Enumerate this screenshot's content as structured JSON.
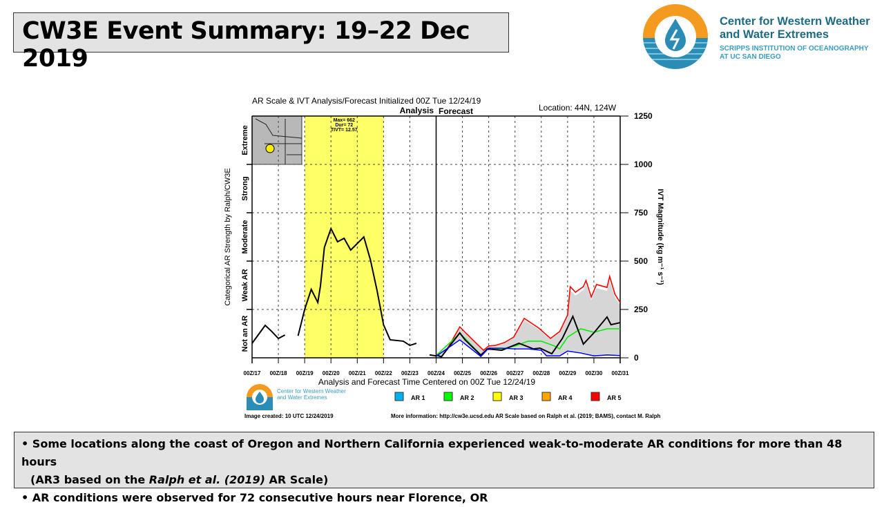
{
  "slide_title": "CW3E Event Summary: 19–22 Dec 2019",
  "logo": {
    "name_line1": "Center for Western Weather",
    "name_line2": "and Water Extremes",
    "sub_line1": "SCRIPPS INSTITUTION OF OCEANOGRAPHY",
    "sub_line2": "AT UC SAN DIEGO",
    "colors": {
      "orange": "#f39a1f",
      "blue": "#2b8cb5"
    }
  },
  "bullets": {
    "b1_part1": "Some locations along the coast of Oregon and Northern California experienced weak-to-moderate AR conditions for more than 48 hours",
    "b1_part2a": "(AR3 based on the ",
    "b1_italic": "Ralph et al. (2019)",
    "b1_part2b": " AR Scale)",
    "b2": "AR conditions were observed for 72 consecutive hours near Florence, OR"
  },
  "chart_data": {
    "type": "line",
    "title": "AR Scale & IVT Analysis/Forecast Initialized 00Z Tue 12/24/19",
    "location": "Location: 44N, 124W",
    "analysis_label": "Analysis",
    "forecast_label": "Forecast",
    "xlabel": "Analysis and Forecast Time Centered on 00Z Tue 12/24/19",
    "ylabel_left": "Categorical AR Strength by Ralph/CW3E",
    "ylabel_right": "IVT Magnitude (kg m⁻¹ s⁻¹)",
    "x_ticks": [
      "00Z/17",
      "00Z/18",
      "00Z/19",
      "00Z/20",
      "00Z/21",
      "00Z/22",
      "00Z/23",
      "00Z/24",
      "00Z/25",
      "00Z/26",
      "00Z/27",
      "00Z/28",
      "00Z/29",
      "00Z/30",
      "00Z/31"
    ],
    "xlim_days": [
      0,
      14
    ],
    "ylim": [
      0,
      1250
    ],
    "y_ticks": [
      "0",
      "250",
      "500",
      "750",
      "1000",
      "1250"
    ],
    "categories": [
      "Not an AR",
      "Weak AR",
      "Moderate",
      "Strong",
      "Extreme"
    ],
    "ar_event": {
      "start_day": 2,
      "end_day": 5,
      "category": "AR 3",
      "max": "Max= 662",
      "dur": "Dur= 72",
      "tivt": "TIVT= 12.57"
    },
    "analysis_forecast_split_day": 7,
    "analysis_series": [
      [
        [
          0,
          75
        ],
        [
          0.5,
          168
        ],
        [
          0.75,
          136
        ],
        [
          1,
          100
        ],
        [
          1.25,
          118
        ]
      ],
      [
        [
          1.75,
          114
        ],
        [
          2,
          250
        ],
        [
          2.25,
          354
        ],
        [
          2.5,
          286
        ],
        [
          2.6,
          371
        ],
        [
          2.75,
          571
        ],
        [
          3,
          668
        ],
        [
          3.25,
          600
        ],
        [
          3.5,
          618
        ],
        [
          3.75,
          557
        ],
        [
          4.25,
          625
        ],
        [
          4.5,
          507
        ],
        [
          4.75,
          350
        ],
        [
          5,
          171
        ],
        [
          5.25,
          93
        ],
        [
          5.75,
          86
        ],
        [
          6,
          64
        ],
        [
          6.25,
          75
        ]
      ],
      [
        [
          6.75,
          15
        ],
        [
          7,
          10
        ]
      ]
    ],
    "forecast_series": [
      {
        "name": "max",
        "color": "#ff0000",
        "points": [
          [
            7,
            18
          ],
          [
            7.2,
            5
          ],
          [
            7.5,
            64
          ],
          [
            7.9,
            160
          ],
          [
            8.15,
            125
          ],
          [
            8.8,
            39
          ],
          [
            9,
            61
          ],
          [
            9.25,
            64
          ],
          [
            9.6,
            79
          ],
          [
            9.95,
            107
          ],
          [
            10.35,
            204
          ],
          [
            10.9,
            154
          ],
          [
            11.35,
            100
          ],
          [
            11.7,
            136
          ],
          [
            12,
            221
          ],
          [
            12.1,
            368
          ],
          [
            12.3,
            339
          ],
          [
            12.6,
            368
          ],
          [
            12.7,
            400
          ],
          [
            12.9,
            314
          ],
          [
            13.1,
            379
          ],
          [
            13.5,
            364
          ],
          [
            13.6,
            421
          ],
          [
            13.8,
            329
          ],
          [
            14,
            286
          ]
        ]
      },
      {
        "name": "Mean",
        "color": "#00ee00",
        "points": [
          [
            7,
            12
          ],
          [
            7.9,
            125
          ],
          [
            8.1,
            100
          ],
          [
            8.7,
            14
          ],
          [
            9,
            50
          ],
          [
            9.5,
            46
          ],
          [
            10,
            61
          ],
          [
            10.5,
            86
          ],
          [
            11,
            86
          ],
          [
            11.5,
            61
          ],
          [
            11.7,
            46
          ],
          [
            12,
            107
          ],
          [
            12.5,
            150
          ],
          [
            13,
            132
          ],
          [
            13.5,
            150
          ],
          [
            14,
            150
          ]
        ]
      },
      {
        "name": "control",
        "color": "#000000",
        "points": [
          [
            7,
            14
          ],
          [
            7.2,
            5
          ],
          [
            7.9,
            129
          ],
          [
            8.1,
            93
          ],
          [
            8.7,
            14
          ],
          [
            8.95,
            46
          ],
          [
            9.5,
            39
          ],
          [
            10.15,
            75
          ],
          [
            10.7,
            46
          ],
          [
            10.95,
            50
          ],
          [
            11.4,
            21
          ],
          [
            11.8,
            100
          ],
          [
            12.2,
            214
          ],
          [
            12.6,
            71
          ],
          [
            13,
            129
          ],
          [
            13.5,
            211
          ],
          [
            13.65,
            171
          ],
          [
            14,
            182
          ]
        ]
      },
      {
        "name": "min",
        "color": "#0000ff",
        "points": [
          [
            7,
            8
          ],
          [
            7.9,
            93
          ],
          [
            8.7,
            7
          ],
          [
            9,
            50
          ],
          [
            9.5,
            50
          ],
          [
            10,
            46
          ],
          [
            10.5,
            46
          ],
          [
            11,
            39
          ],
          [
            11.2,
            10
          ],
          [
            11.7,
            10
          ],
          [
            12,
            35
          ],
          [
            12.5,
            25
          ],
          [
            13,
            10
          ],
          [
            13.5,
            15
          ],
          [
            14,
            12
          ]
        ]
      }
    ],
    "legend": [
      {
        "label": "AR 1",
        "color": "#00b0f0"
      },
      {
        "label": "AR 2",
        "color": "#00ff00"
      },
      {
        "label": "AR 3",
        "color": "#ffff00"
      },
      {
        "label": "AR 4",
        "color": "#ffa500"
      },
      {
        "label": "AR 5",
        "color": "#ff0000"
      }
    ],
    "footer_left": "Image created: 10 UTC 12/24/2019",
    "footer_right": "More information: http://cw3e.ucsd.edu  AR Scale based on Ralph et al. (2019; BAMS), contact M. Ralph",
    "mini_logo_line1": "Center for Western Weather",
    "mini_logo_line2": "and Water Extremes"
  }
}
